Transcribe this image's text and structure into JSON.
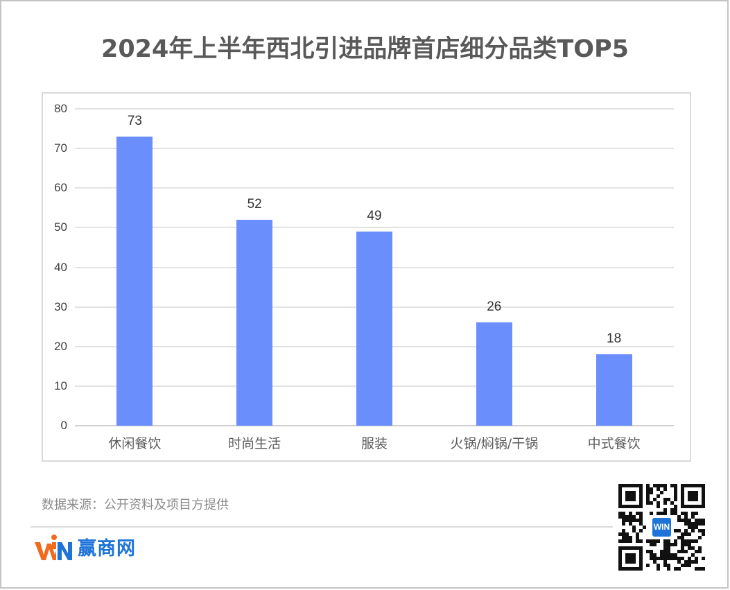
{
  "title": "2024年上半年西北引进品牌首店细分品类TOP5",
  "chart_data": {
    "type": "bar",
    "title": "2024年上半年西北引进品牌首店细分品类TOP5",
    "categories": [
      "休闲餐饮",
      "时尚生活",
      "服装",
      "火锅/焖锅/干锅",
      "中式餐饮"
    ],
    "values": [
      73,
      52,
      49,
      26,
      18
    ],
    "data_labels": [
      "73",
      "52",
      "49",
      "26",
      "18"
    ],
    "xlabel": "",
    "ylabel": "",
    "ylim": [
      0,
      80
    ],
    "yticks": [
      "0",
      "10",
      "20",
      "30",
      "40",
      "50",
      "60",
      "70",
      "80"
    ],
    "grid": true,
    "legend": null,
    "bar_color": "#6a8ffd"
  },
  "footer": {
    "source": "数据来源：公开资料及项目方提供",
    "brand_name": "赢商网",
    "brand_mark": "WIN",
    "brand_colors": {
      "orange": "#f26b1d",
      "blue": "#1e73d9"
    },
    "qr_code_label": "qr-code"
  }
}
